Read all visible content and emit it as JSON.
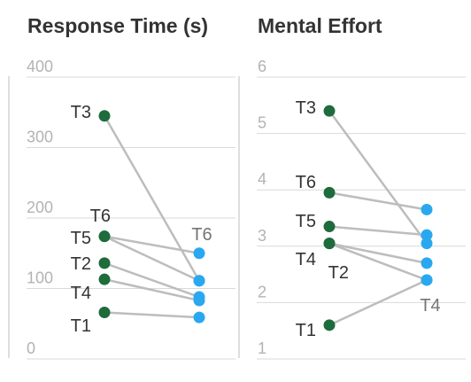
{
  "colors": {
    "before": "#1e6b3c",
    "after": "#29a8f0",
    "line": "#bdbdbd",
    "grid": "#d9d9d9",
    "tick": "#b3b3b3",
    "title": "#333333"
  },
  "chart_data": [
    {
      "type": "line",
      "title": "Response Time (s)",
      "ylim": [
        0,
        400
      ],
      "yticks": [
        0,
        100,
        200,
        300,
        400
      ],
      "grid": true,
      "series": [
        {
          "name": "T1",
          "values": [
            66,
            59
          ]
        },
        {
          "name": "T2",
          "values": [
            136,
            88
          ]
        },
        {
          "name": "T3",
          "values": [
            345,
            111
          ]
        },
        {
          "name": "T4",
          "values": [
            113,
            83
          ]
        },
        {
          "name": "T5",
          "values": [
            174,
            111
          ]
        },
        {
          "name": "T6",
          "values": [
            174,
            150
          ]
        }
      ],
      "labels_left": [
        "T3",
        "T6",
        "T5",
        "T2",
        "T4",
        "T1"
      ],
      "labels_right": [
        "T6"
      ]
    },
    {
      "type": "line",
      "title": "Mental Effort",
      "ylim": [
        1,
        6
      ],
      "yticks": [
        1,
        2,
        3,
        4,
        5,
        6
      ],
      "grid": true,
      "series": [
        {
          "name": "T1",
          "values": [
            1.6,
            2.4
          ]
        },
        {
          "name": "T2",
          "values": [
            3.05,
            2.7
          ]
        },
        {
          "name": "T3",
          "values": [
            5.4,
            3.05
          ]
        },
        {
          "name": "T4",
          "values": [
            3.05,
            2.4
          ]
        },
        {
          "name": "T5",
          "values": [
            3.35,
            3.2
          ]
        },
        {
          "name": "T6",
          "values": [
            3.95,
            3.65
          ]
        }
      ],
      "labels_left": [
        "T3",
        "T6",
        "T5",
        "T4",
        "T2",
        "T1"
      ],
      "labels_right": [
        "T4"
      ]
    }
  ]
}
